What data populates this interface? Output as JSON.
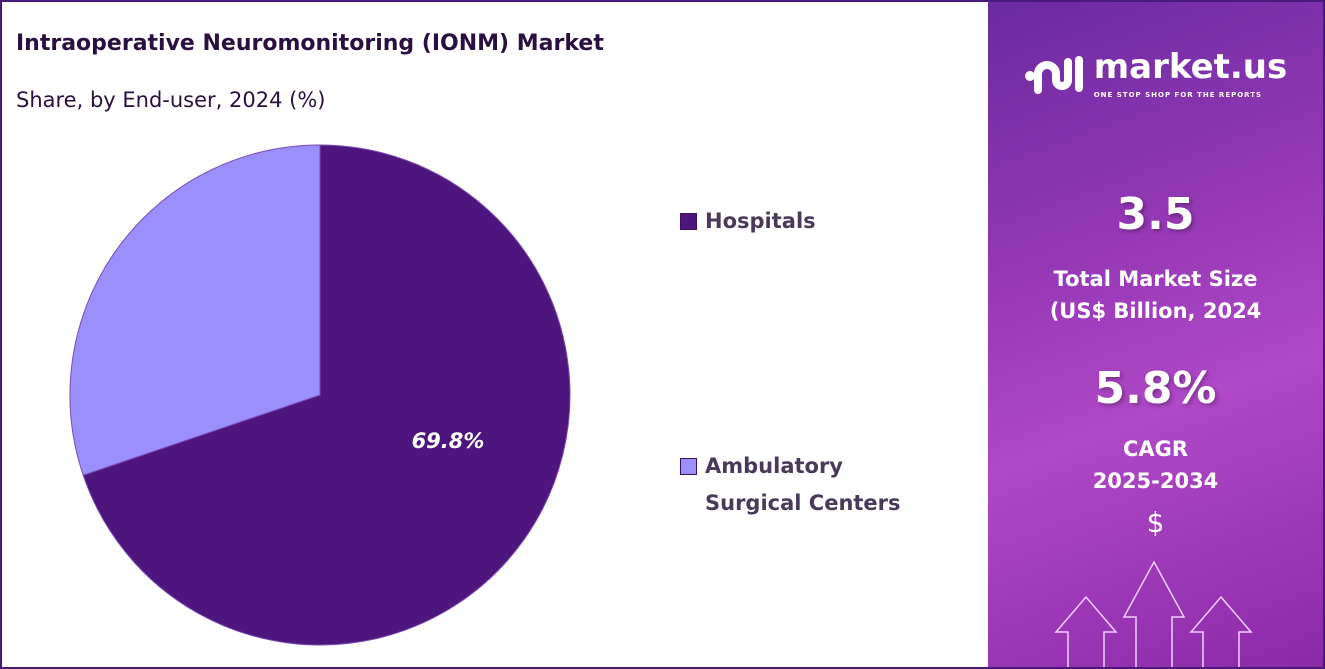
{
  "title": "Intraoperative Neuromonitoring (IONM) Market",
  "subtitle": "Share, by End-user, 2024 (%)",
  "chart_data": {
    "type": "pie",
    "title": "Intraoperative Neuromonitoring (IONM) Market",
    "subtitle": "Share, by End-user, 2024 (%)",
    "categories": [
      "Hospitals",
      "Ambulatory Surgical Centers"
    ],
    "values": [
      69.8,
      30.2
    ],
    "colors": [
      "#4e157e",
      "#9b8ffc"
    ],
    "data_labels": [
      "69.8%",
      ""
    ],
    "legend_position": "right"
  },
  "legend": [
    {
      "label": "Hospitals"
    },
    {
      "label_line1": "Ambulatory",
      "label_line2": "Surgical Centers"
    }
  ],
  "sidebar": {
    "brand": "market.us",
    "tagline": "ONE STOP SHOP FOR THE REPORTS",
    "market_size": "3.5",
    "market_size_label1": "Total Market Size",
    "market_size_label2": "(US$ Billion, 2024",
    "cagr": "5.8%",
    "cagr_label1": "CAGR",
    "cagr_label2": "2025-2034",
    "currency_symbol": "$"
  }
}
